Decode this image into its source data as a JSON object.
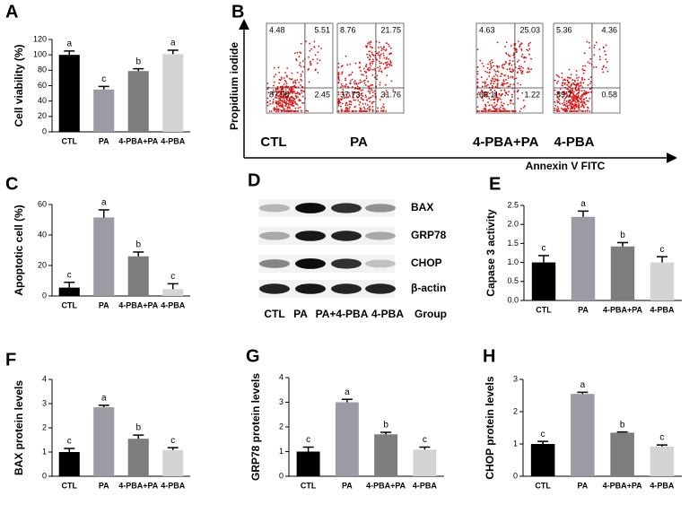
{
  "chart_data": [
    {
      "type": "bar",
      "panel": "A",
      "y_label": "Cell viability (%)",
      "categories": [
        "CTL",
        "PA",
        "4-PBA+PA",
        "4-PBA"
      ],
      "values": [
        100,
        55,
        79,
        101
      ],
      "errors": [
        5,
        4,
        3,
        5
      ],
      "letters": [
        "a",
        "c",
        "b",
        "a"
      ],
      "colors": [
        "#000000",
        "#9b9ba3",
        "#7d7d7d",
        "#d4d4d4"
      ],
      "ylim": [
        0,
        120
      ],
      "yticks": [
        0,
        20,
        40,
        60,
        80,
        100,
        120
      ]
    },
    {
      "type": "bar",
      "panel": "C",
      "y_label": "Apoptotic cell (%)",
      "categories": [
        "CTL",
        "PA",
        "4-PBA+PA",
        "4-PBA"
      ],
      "values": [
        5.5,
        51.5,
        26,
        4.5
      ],
      "errors": [
        3.5,
        5,
        2.8,
        3.5
      ],
      "letters": [
        "c",
        "a",
        "b",
        "c"
      ],
      "colors": [
        "#000000",
        "#9b9ba3",
        "#7d7d7d",
        "#d4d4d4"
      ],
      "ylim": [
        0,
        60
      ],
      "yticks": [
        0,
        20,
        40,
        60
      ]
    },
    {
      "type": "bar",
      "panel": "E",
      "y_label": "Capase 3 activity",
      "categories": [
        "CTL",
        "PA",
        "4-PBA+PA",
        "4-PBA"
      ],
      "values": [
        1.0,
        2.2,
        1.42,
        1.0
      ],
      "errors": [
        0.18,
        0.15,
        0.1,
        0.15
      ],
      "letters": [
        "c",
        "a",
        "b",
        "c"
      ],
      "colors": [
        "#000000",
        "#9b9ba3",
        "#7d7d7d",
        "#d4d4d4"
      ],
      "ylim": [
        0,
        2.5
      ],
      "yticks": [
        {
          "value": 0,
          "label": "0.0"
        },
        {
          "value": 0.5,
          "label": "0.5"
        },
        {
          "value": 1,
          "label": "1.0"
        },
        {
          "value": 1.5,
          "label": "1.5"
        },
        {
          "value": 2,
          "label": "2.0"
        },
        {
          "value": 2.5,
          "label": "2.5"
        }
      ]
    },
    {
      "type": "bar",
      "panel": "F",
      "y_label": "BAX protein levels",
      "categories": [
        "CTL",
        "PA",
        "4-PBA+PA",
        "4-PBA"
      ],
      "values": [
        1.0,
        2.85,
        1.55,
        1.08
      ],
      "errors": [
        0.15,
        0.08,
        0.15,
        0.1
      ],
      "letters": [
        "c",
        "a",
        "b",
        "c"
      ],
      "colors": [
        "#000000",
        "#9b9ba3",
        "#7d7d7d",
        "#d4d4d4"
      ],
      "ylim": [
        0,
        4
      ],
      "yticks": [
        0,
        1,
        2,
        3,
        4
      ]
    },
    {
      "type": "bar",
      "panel": "G",
      "y_label": "GRP78 protein levels",
      "categories": [
        "CTL",
        "PA",
        "4-PBA+PA",
        "4-PBA"
      ],
      "values": [
        1.0,
        3.0,
        1.7,
        1.08
      ],
      "errors": [
        0.18,
        0.12,
        0.08,
        0.1
      ],
      "letters": [
        "c",
        "a",
        "b",
        "c"
      ],
      "colors": [
        "#000000",
        "#9b9ba3",
        "#7d7d7d",
        "#d4d4d4"
      ],
      "ylim": [
        0,
        4
      ],
      "yticks": [
        0,
        1,
        2,
        3,
        4
      ]
    },
    {
      "type": "bar",
      "panel": "H",
      "y_label": "CHOP protein levels",
      "categories": [
        "CTL",
        "PA",
        "4-PBA+PA",
        "4-PBA"
      ],
      "values": [
        1.0,
        2.55,
        1.35,
        0.92
      ],
      "errors": [
        0.08,
        0.05,
        0.02,
        0.05
      ],
      "letters": [
        "c",
        "a",
        "b",
        "c"
      ],
      "colors": [
        "#000000",
        "#9b9ba3",
        "#7d7d7d",
        "#d4d4d4"
      ],
      "ylim": [
        0,
        3
      ],
      "yticks": [
        0,
        1,
        2,
        3
      ]
    }
  ],
  "flow_cytometry": {
    "panel": "B",
    "y_label": "Propidium iodide",
    "x_label": "Annexin V FITC",
    "plots": [
      {
        "label": "CTL",
        "quadrants": [
          4.48,
          5.51,
          87.56,
          2.45
        ]
      },
      {
        "label": "PA",
        "quadrants": [
          8.76,
          21.75,
          37.73,
          31.76
        ]
      },
      {
        "label": "4-PBA+PA",
        "quadrants": [
          4.63,
          25.03,
          69.11,
          1.22
        ]
      },
      {
        "label": "4-PBA",
        "quadrants": [
          5.36,
          4.36,
          89.7,
          0.58
        ]
      }
    ]
  },
  "western_blot": {
    "panel": "D",
    "proteins": [
      "BAX",
      "GRP78",
      "CHOP",
      "β-actin"
    ],
    "lanes": [
      "CTL",
      "PA",
      "PA+4-PBA",
      "4-PBA"
    ],
    "group_label": "Group"
  }
}
